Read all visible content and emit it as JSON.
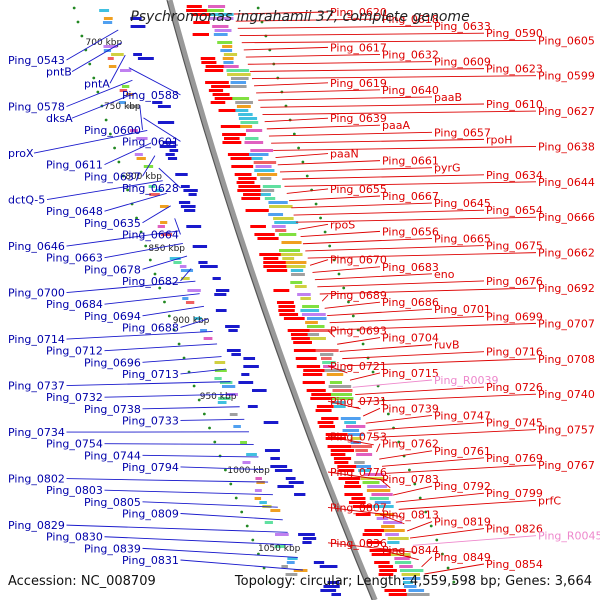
{
  "title": "Psychromonas ingrahamii 37, complete genome",
  "footer": {
    "accession": "Accession: NC_008709",
    "topology": "Topology: circular; Length: 4,559,598 bp; Genes: 3,664"
  },
  "colors": {
    "forward": "#ff0000",
    "reverse": "#1a1acc",
    "rna": "#ee88cc",
    "label_blue": "#0000aa",
    "label_red": "#dd0000",
    "ring": "#888888",
    "ticks": "#228822"
  },
  "scale_labels": [
    "700 kbp",
    "750 kbp",
    "800 kbp",
    "850 kbp",
    "900 kbp",
    "950 kbp",
    "1000 kbp",
    "1050 kbp"
  ],
  "left_labels": [
    "Ping_0543",
    "pntB",
    "pntA",
    "Ping_0588",
    "Ping_0578",
    "dksA",
    "Ping_0600",
    "Ping_0601",
    "proX",
    "Ping_0611",
    "Ping_0637",
    "Ping_0628",
    "dctQ-5",
    "Ping_0648",
    "Ping_0635",
    "Ping_0664",
    "Ping_0646",
    "Ping_0663",
    "Ping_0678",
    "Ping_0682",
    "Ping_0700",
    "Ping_0684",
    "Ping_0694",
    "Ping_0688",
    "Ping_0714",
    "Ping_0712",
    "Ping_0696",
    "Ping_0713",
    "Ping_0737",
    "Ping_0732",
    "Ping_0738",
    "Ping_0733",
    "Ping_0734",
    "Ping_0754",
    "Ping_0744",
    "Ping_0794",
    "Ping_0802",
    "Ping_0803",
    "Ping_0805",
    "Ping_0809",
    "Ping_0829",
    "Ping_0830",
    "Ping_0839",
    "Ping_0831"
  ],
  "right_labels": [
    "Ping_0620",
    "Ping_0618",
    "Ping_0633",
    "Ping_0590",
    "Ping_0605",
    "Ping_0617",
    "Ping_0632",
    "Ping_0609",
    "Ping_0623",
    "Ping_0599",
    "Ping_0619",
    "Ping_0640",
    "paaB",
    "Ping_0610",
    "Ping_0627",
    "Ping_0639",
    "paaA",
    "Ping_0657",
    "rpoH",
    "Ping_0638",
    "paaN",
    "Ping_0661",
    "pyrG",
    "Ping_0634",
    "Ping_0644",
    "Ping_0655",
    "Ping_0667",
    "Ping_0645",
    "Ping_0654",
    "Ping_0666",
    "rpoS",
    "Ping_0656",
    "Ping_0665",
    "Ping_0675",
    "Ping_0662",
    "Ping_0670",
    "Ping_0683",
    "eno",
    "Ping_0676",
    "Ping_0692",
    "Ping_0689",
    "Ping_0686",
    "Ping_0701",
    "Ping_0699",
    "Ping_0707",
    "Ping_0693",
    "Ping_0704",
    "ruvB",
    "Ping_0716",
    "Ping_0708",
    "Ping_0721",
    "Ping_0715",
    "Ping_R0039",
    "Ping_0726",
    "Ping_0740",
    "Ping_0731",
    "Ping_0739",
    "Ping_0747",
    "Ping_0745",
    "Ping_0757",
    "Ping_0753",
    "Ping_0762",
    "Ping_0761",
    "Ping_0769",
    "Ping_0767",
    "Ping_0776",
    "Ping_0783",
    "Ping_0792",
    "Ping_0799",
    "prfC",
    "Ping_0807",
    "Ping_0813",
    "Ping_0819",
    "Ping_0826",
    "Ping_R0045",
    "Ping_0836",
    "Ping_0844",
    "Ping_0849",
    "Ping_0854"
  ]
}
